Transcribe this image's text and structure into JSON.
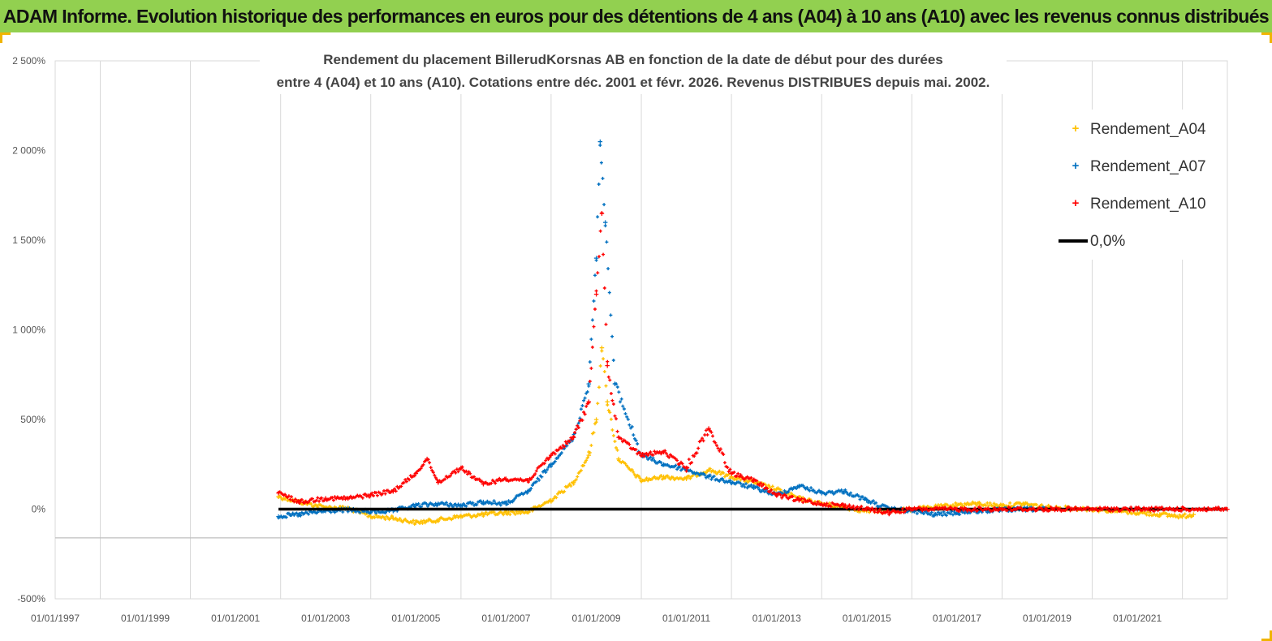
{
  "banner": {
    "title": "ADAM Informe. Evolution historique des performances en euros pour des détentions de 4 ans (A04) à 10 ans (A10) avec les revenus connus distribués",
    "background": "#92d050"
  },
  "chart_data": {
    "type": "scatter",
    "title_line1": "Rendement du placement BillerudKorsnas AB en fonction de la date de début pour des durées",
    "title_line2": "entre 4 (A04) et 10 ans (A10). Cotations entre déc. 2001 et févr. 2026. Revenus DISTRIBUES depuis mai. 2002.",
    "x_axis": {
      "type": "date",
      "min": "1997-01-01",
      "max": "2022-12-31",
      "tick_labels": [
        "01/01/1997",
        "01/01/1999",
        "01/01/2001",
        "01/01/2003",
        "01/01/2005",
        "01/01/2007",
        "01/01/2009",
        "01/01/2011",
        "01/01/2013",
        "01/01/2015",
        "01/01/2017",
        "01/01/2019",
        "01/01/2021"
      ],
      "tick_dates": [
        "1997-01-01",
        "1999-01-01",
        "2001-01-01",
        "2003-01-01",
        "2005-01-01",
        "2007-01-01",
        "2009-01-01",
        "2011-01-01",
        "2013-01-01",
        "2015-01-01",
        "2017-01-01",
        "2019-01-01",
        "2021-01-01"
      ],
      "vertical_grid_labels": [
        "1998",
        "2000",
        "2002",
        "2004",
        "2006",
        "2008",
        "2010",
        "2012",
        "2014",
        "2016",
        "2018",
        "2020",
        "2022"
      ]
    },
    "y_axis": {
      "unit": "%",
      "min": -500,
      "max": 2500,
      "ticks": [
        -500,
        0,
        500,
        1000,
        1500,
        2000,
        2500
      ],
      "tick_labels": [
        "-500%",
        "0%",
        "500%",
        "1 000%",
        "1 500%",
        "2 000%",
        "2 500%"
      ]
    },
    "grid": {
      "vertical": true,
      "horizontal": false,
      "hline_at": -160
    },
    "legend": {
      "placement": "top-right"
    },
    "series": [
      {
        "name": "Rendement_A04",
        "color": "#ffc000",
        "marker": "+",
        "points": [
          [
            "2001-12-15",
            70
          ],
          [
            "2002-06-01",
            40
          ],
          [
            "2003-01-01",
            10
          ],
          [
            "2003-07-01",
            5
          ],
          [
            "2004-01-01",
            -40
          ],
          [
            "2004-07-01",
            -50
          ],
          [
            "2005-01-01",
            -75
          ],
          [
            "2005-07-01",
            -60
          ],
          [
            "2006-01-01",
            -40
          ],
          [
            "2006-07-01",
            -30
          ],
          [
            "2007-01-01",
            -20
          ],
          [
            "2007-07-01",
            -15
          ],
          [
            "2008-01-01",
            50
          ],
          [
            "2008-07-01",
            150
          ],
          [
            "2008-11-01",
            300
          ],
          [
            "2009-01-01",
            500
          ],
          [
            "2009-02-15",
            900
          ],
          [
            "2009-04-01",
            600
          ],
          [
            "2009-07-01",
            280
          ],
          [
            "2010-01-01",
            160
          ],
          [
            "2010-07-01",
            180
          ],
          [
            "2011-01-01",
            170
          ],
          [
            "2011-07-01",
            220
          ],
          [
            "2012-01-01",
            180
          ],
          [
            "2012-07-01",
            150
          ],
          [
            "2013-01-01",
            110
          ],
          [
            "2013-07-01",
            60
          ],
          [
            "2014-01-01",
            30
          ],
          [
            "2014-07-01",
            10
          ],
          [
            "2015-01-01",
            -10
          ],
          [
            "2015-07-01",
            -10
          ],
          [
            "2016-01-01",
            0
          ],
          [
            "2016-07-01",
            10
          ],
          [
            "2017-01-01",
            25
          ],
          [
            "2017-07-01",
            30
          ],
          [
            "2018-01-01",
            20
          ],
          [
            "2018-07-01",
            30
          ],
          [
            "2019-01-01",
            10
          ],
          [
            "2019-07-01",
            5
          ],
          [
            "2020-01-01",
            0
          ],
          [
            "2020-07-01",
            -10
          ],
          [
            "2021-01-01",
            -20
          ],
          [
            "2021-07-01",
            -30
          ],
          [
            "2022-01-01",
            -40
          ],
          [
            "2022-04-01",
            -30
          ]
        ]
      },
      {
        "name": "Rendement_A07",
        "color": "#0070c0",
        "marker": "+",
        "points": [
          [
            "2001-12-15",
            -40
          ],
          [
            "2002-06-01",
            -30
          ],
          [
            "2003-01-01",
            -10
          ],
          [
            "2003-07-01",
            -5
          ],
          [
            "2004-01-01",
            -15
          ],
          [
            "2004-07-01",
            -10
          ],
          [
            "2005-01-01",
            20
          ],
          [
            "2005-07-01",
            30
          ],
          [
            "2006-01-01",
            20
          ],
          [
            "2006-07-01",
            40
          ],
          [
            "2007-01-01",
            30
          ],
          [
            "2007-07-01",
            100
          ],
          [
            "2008-01-01",
            250
          ],
          [
            "2008-07-01",
            400
          ],
          [
            "2008-11-01",
            700
          ],
          [
            "2009-01-01",
            1400
          ],
          [
            "2009-02-01",
            2050
          ],
          [
            "2009-03-15",
            1600
          ],
          [
            "2009-06-01",
            700
          ],
          [
            "2010-01-01",
            300
          ],
          [
            "2010-07-01",
            250
          ],
          [
            "2011-01-01",
            220
          ],
          [
            "2011-07-01",
            180
          ],
          [
            "2012-01-01",
            150
          ],
          [
            "2012-07-01",
            120
          ],
          [
            "2013-01-01",
            80
          ],
          [
            "2013-07-01",
            130
          ],
          [
            "2014-01-01",
            90
          ],
          [
            "2014-07-01",
            100
          ],
          [
            "2015-01-01",
            50
          ],
          [
            "2015-07-01",
            0
          ],
          [
            "2016-01-01",
            -10
          ],
          [
            "2016-07-01",
            -30
          ],
          [
            "2017-01-01",
            -20
          ],
          [
            "2017-07-01",
            -10
          ],
          [
            "2018-01-01",
            -5
          ],
          [
            "2018-07-01",
            0
          ],
          [
            "2019-01-01",
            0
          ]
        ]
      },
      {
        "name": "Rendement_A10",
        "color": "#ff0000",
        "marker": "+",
        "points": [
          [
            "2001-12-15",
            90
          ],
          [
            "2002-06-01",
            40
          ],
          [
            "2003-01-01",
            60
          ],
          [
            "2003-07-01",
            60
          ],
          [
            "2004-01-01",
            80
          ],
          [
            "2004-07-01",
            100
          ],
          [
            "2005-01-01",
            200
          ],
          [
            "2005-04-01",
            280
          ],
          [
            "2005-07-01",
            150
          ],
          [
            "2006-01-01",
            230
          ],
          [
            "2006-07-01",
            140
          ],
          [
            "2007-01-01",
            170
          ],
          [
            "2007-07-01",
            160
          ],
          [
            "2008-01-01",
            300
          ],
          [
            "2008-07-01",
            400
          ],
          [
            "2008-11-01",
            600
          ],
          [
            "2009-01-01",
            1200
          ],
          [
            "2009-02-15",
            1650
          ],
          [
            "2009-04-01",
            800
          ],
          [
            "2009-07-01",
            400
          ],
          [
            "2010-01-01",
            300
          ],
          [
            "2010-07-01",
            320
          ],
          [
            "2011-01-01",
            230
          ],
          [
            "2011-07-01",
            450
          ],
          [
            "2012-01-01",
            200
          ],
          [
            "2012-07-01",
            160
          ],
          [
            "2013-01-01",
            80
          ],
          [
            "2013-07-01",
            50
          ],
          [
            "2014-01-01",
            30
          ],
          [
            "2014-07-01",
            20
          ],
          [
            "2015-01-01",
            0
          ],
          [
            "2015-07-01",
            -20
          ],
          [
            "2016-01-01",
            0
          ],
          [
            "2016-07-01",
            0
          ],
          [
            "2017-01-01",
            0
          ],
          [
            "2018-01-01",
            0
          ],
          [
            "2019-01-01",
            0
          ],
          [
            "2020-01-01",
            0
          ],
          [
            "2021-01-01",
            0
          ],
          [
            "2022-01-01",
            0
          ],
          [
            "2022-12-31",
            0
          ]
        ]
      },
      {
        "name": "0,0%",
        "color": "#000000",
        "marker": "line",
        "points": [
          [
            "2001-12-15",
            0
          ],
          [
            "2022-12-31",
            0
          ]
        ]
      }
    ]
  }
}
